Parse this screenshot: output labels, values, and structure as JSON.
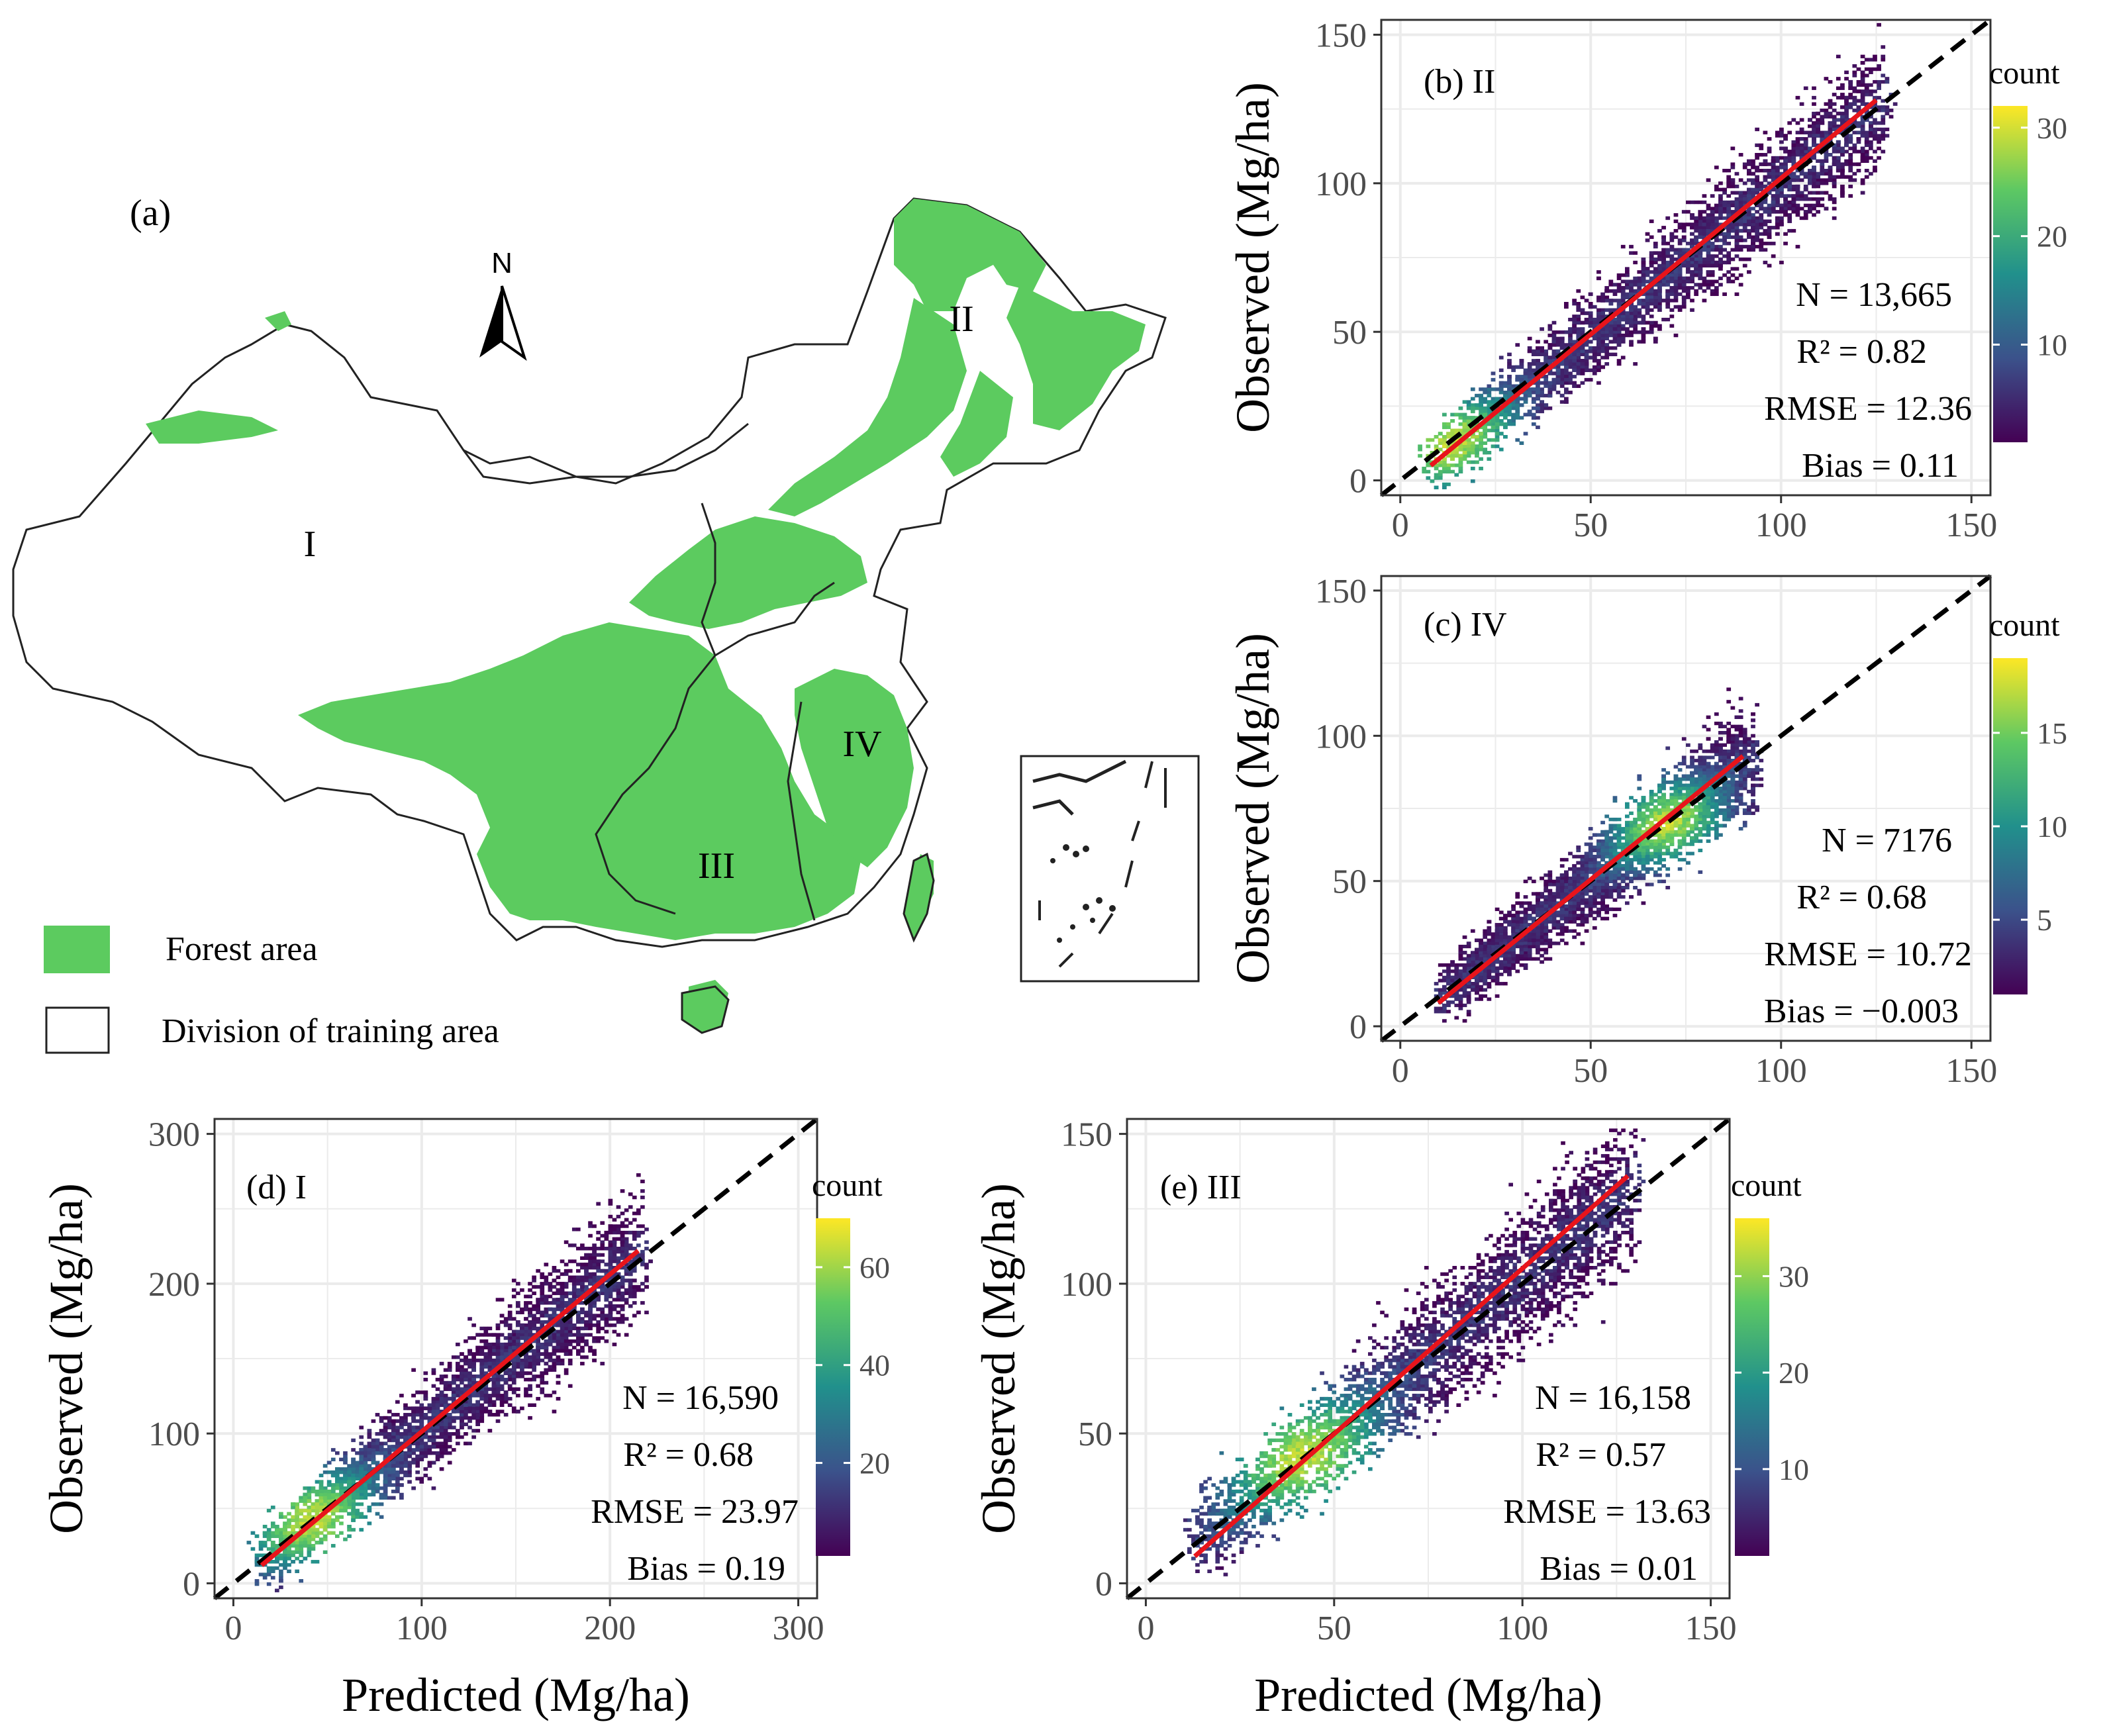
{
  "map_panel": {
    "label": "(a)",
    "north_label": "N",
    "region_labels": [
      "I",
      "II",
      "III",
      "IV"
    ],
    "legend": [
      {
        "label": "Forest area",
        "color": "#5ccb5f",
        "swatch": "filled"
      },
      {
        "label": "Division of training area",
        "color": "#ffffff",
        "swatch": "outline"
      }
    ],
    "forest_color": "#5ccb5f",
    "border_color": "#222222"
  },
  "colorscale": {
    "name": "viridis",
    "stops": [
      "#440154",
      "#3b528b",
      "#21908c",
      "#5dc863",
      "#fde725"
    ],
    "legend_title": "count"
  },
  "colors": {
    "fit_line": "#e8141b",
    "identity_line": "#000000",
    "grid": "#ebebeb",
    "panel_border": "#333333",
    "axis_text": "#4d4d4d"
  },
  "chart_data": [
    {
      "id": "b",
      "type": "heatmap",
      "title": "(b) II",
      "xlabel": "",
      "ylabel": "Observed (Mg/ha)",
      "xlim": [
        -5,
        155
      ],
      "ylim": [
        -5,
        155
      ],
      "xticks": [
        0,
        50,
        100,
        150
      ],
      "yticks": [
        0,
        50,
        100,
        150
      ],
      "grid": true,
      "legend_position": "right",
      "count_range": [
        1,
        32
      ],
      "count_ticks": [
        10,
        20,
        30
      ],
      "fit_line": {
        "x": [
          8,
          125
        ],
        "y": [
          5,
          128
        ]
      },
      "identity_line": true,
      "cloud": {
        "x_range": [
          8,
          126
        ],
        "slope": 1.03,
        "intercept": -3,
        "spread": 9,
        "peak": [
          13,
          13
        ]
      },
      "stats": [
        "N = 13,665",
        "R² = 0.82",
        "RMSE = 12.36",
        "Bias = 0.11"
      ]
    },
    {
      "id": "c",
      "type": "heatmap",
      "title": "(c) IV",
      "xlabel": "",
      "ylabel": "Observed (Mg/ha)",
      "xlim": [
        -5,
        155
      ],
      "ylim": [
        -5,
        155
      ],
      "xticks": [
        0,
        50,
        100,
        150
      ],
      "yticks": [
        0,
        50,
        100,
        150
      ],
      "grid": true,
      "legend_position": "right",
      "count_range": [
        1,
        19
      ],
      "count_ticks": [
        5,
        10,
        15
      ],
      "fit_line": {
        "x": [
          10,
          90
        ],
        "y": [
          8,
          93
        ]
      },
      "identity_line": true,
      "cloud": {
        "x_range": [
          12,
          92
        ],
        "slope": 1.02,
        "intercept": -1,
        "spread": 8,
        "peak": [
          70,
          70
        ]
      },
      "stats": [
        "N = 7176",
        "R² = 0.68",
        "RMSE = 10.72",
        "Bias = −0.003"
      ]
    },
    {
      "id": "d",
      "type": "heatmap",
      "title": "(d) I",
      "xlabel": "Predicted (Mg/ha)",
      "ylabel": "Observed (Mg/ha)",
      "xlim": [
        -10,
        310
      ],
      "ylim": [
        -10,
        310
      ],
      "xticks": [
        0,
        100,
        200,
        300
      ],
      "yticks": [
        0,
        100,
        200,
        300
      ],
      "grid": true,
      "legend_position": "right",
      "count_range": [
        1,
        70
      ],
      "count_ticks": [
        20,
        40,
        60
      ],
      "fit_line": {
        "x": [
          15,
          215
        ],
        "y": [
          12,
          222
        ]
      },
      "identity_line": true,
      "cloud": {
        "x_range": [
          15,
          215
        ],
        "slope": 1.02,
        "intercept": 0,
        "spread": 18,
        "peak": [
          42,
          42
        ]
      },
      "stats": [
        "N = 16,590",
        "R² = 0.68",
        "RMSE = 23.97",
        "Bias = 0.19"
      ]
    },
    {
      "id": "e",
      "type": "heatmap",
      "title": "(e) III",
      "xlabel": "Predicted (Mg/ha)",
      "ylabel": "Observed (Mg/ha)",
      "xlim": [
        -5,
        155
      ],
      "ylim": [
        -5,
        155
      ],
      "xticks": [
        0,
        50,
        100,
        150
      ],
      "yticks": [
        0,
        50,
        100,
        150
      ],
      "grid": true,
      "legend_position": "right",
      "count_range": [
        1,
        36
      ],
      "count_ticks": [
        10,
        20,
        30
      ],
      "fit_line": {
        "x": [
          13,
          128
        ],
        "y": [
          9,
          136
        ]
      },
      "identity_line": true,
      "cloud": {
        "x_range": [
          14,
          128
        ],
        "slope": 1.02,
        "intercept": 0,
        "spread": 11,
        "peak": [
          42,
          42
        ]
      },
      "stats": [
        "N = 16,158",
        "R² = 0.57",
        "RMSE = 13.63",
        "Bias = 0.01"
      ]
    }
  ]
}
